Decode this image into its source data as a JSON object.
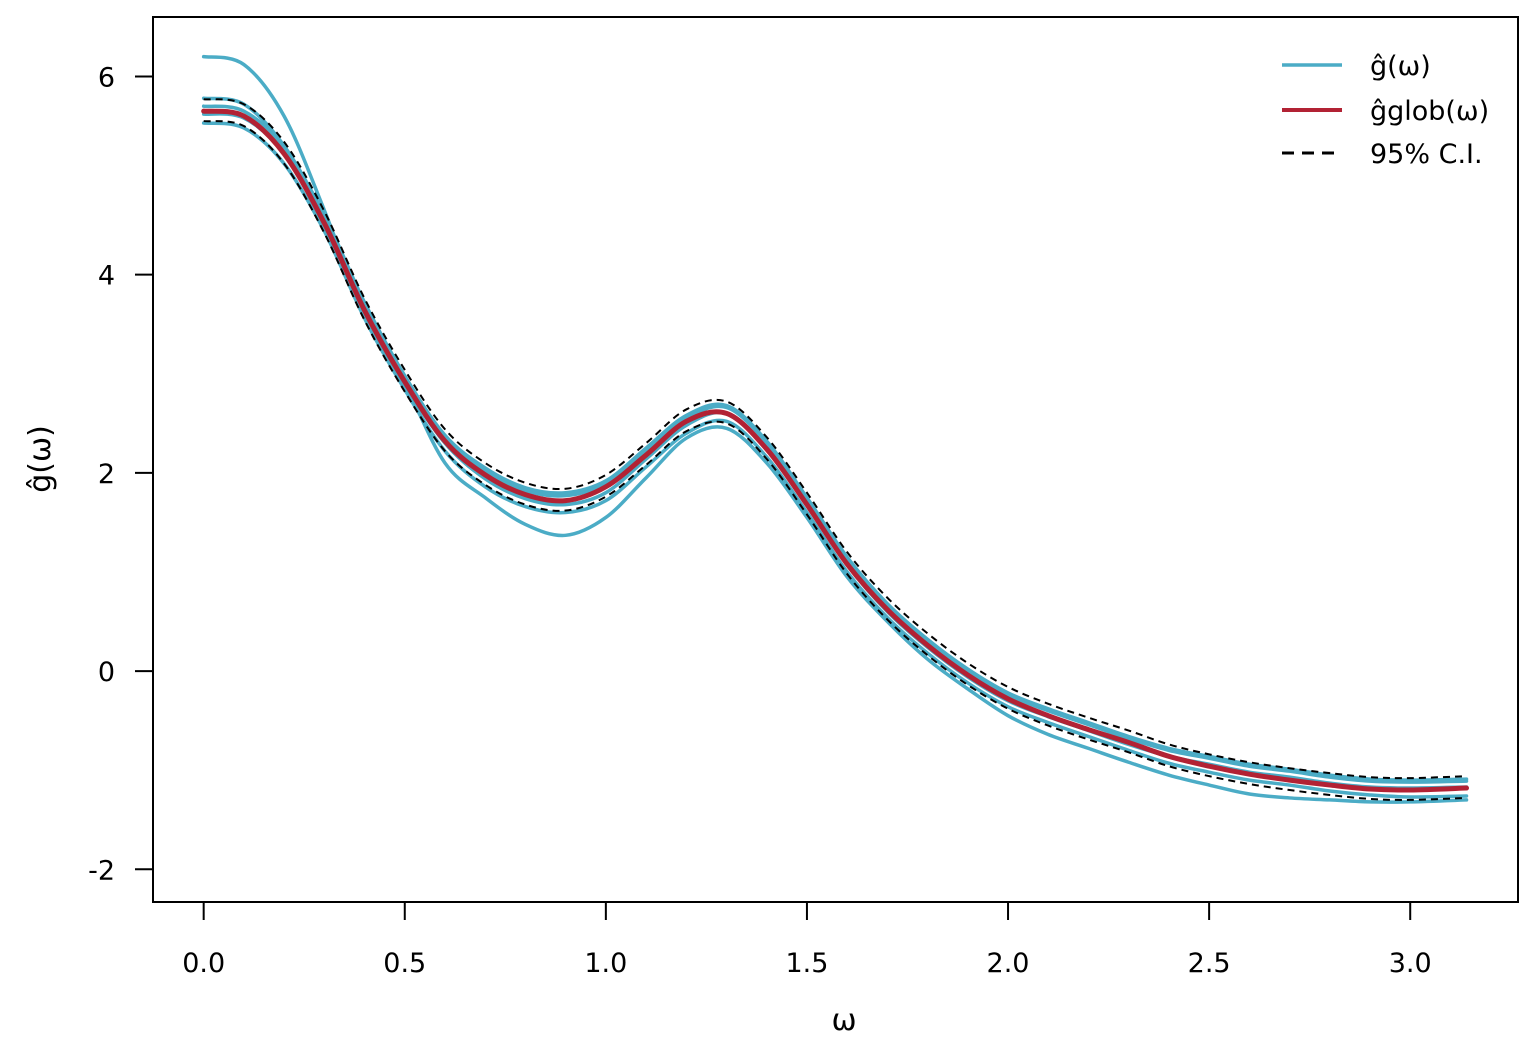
{
  "chart_data": {
    "type": "line",
    "title": "",
    "xlabel": "ω",
    "ylabel": "ĝ(ω)",
    "xlim": [
      -0.126,
      3.268
    ],
    "ylim": [
      -2.33,
      6.6
    ],
    "xticks": [
      0.0,
      0.5,
      1.0,
      1.5,
      2.0,
      2.5,
      3.0
    ],
    "xtick_labels": [
      "0.0",
      "0.5",
      "1.0",
      "1.5",
      "2.0",
      "2.5",
      "3.0"
    ],
    "yticks": [
      -2,
      0,
      2,
      4,
      6
    ],
    "ytick_labels": [
      "-2",
      "0",
      "2",
      "4",
      "6"
    ],
    "grid": false,
    "legend_position": "top-right",
    "x": [
      0.0,
      0.1,
      0.2,
      0.3,
      0.4,
      0.5,
      0.6,
      0.7,
      0.8,
      0.9,
      1.0,
      1.1,
      1.2,
      1.3,
      1.4,
      1.5,
      1.6,
      1.7,
      1.8,
      1.9,
      2.0,
      2.1,
      2.2,
      2.3,
      2.4,
      2.5,
      2.6,
      2.7,
      2.8,
      2.9,
      3.0,
      3.14
    ],
    "series": [
      {
        "name": "ĝ(ω)",
        "role": "individual",
        "color": "#4bacc6",
        "style": "solid",
        "values": [
          6.2,
          6.12,
          5.6,
          4.65,
          3.6,
          2.9,
          2.1,
          1.75,
          1.48,
          1.37,
          1.55,
          1.95,
          2.35,
          2.45,
          2.1,
          1.55,
          0.95,
          0.5,
          0.12,
          -0.18,
          -0.45,
          -0.64,
          -0.78,
          -0.92,
          -1.05,
          -1.15,
          -1.24,
          -1.28,
          -1.3,
          -1.32,
          -1.32,
          -1.3
        ]
      },
      {
        "role": "individual",
        "color": "#4bacc6",
        "style": "solid",
        "values": [
          5.78,
          5.72,
          5.3,
          4.6,
          3.72,
          2.98,
          2.38,
          2.05,
          1.85,
          1.8,
          1.92,
          2.25,
          2.58,
          2.68,
          2.32,
          1.75,
          1.15,
          0.68,
          0.32,
          0.02,
          -0.22,
          -0.38,
          -0.52,
          -0.66,
          -0.78,
          -0.86,
          -0.94,
          -0.99,
          -1.05,
          -1.09,
          -1.1,
          -1.09
        ]
      },
      {
        "role": "individual",
        "color": "#4bacc6",
        "style": "solid",
        "values": [
          5.7,
          5.65,
          5.28,
          4.58,
          3.7,
          2.96,
          2.36,
          2.02,
          1.82,
          1.77,
          1.89,
          2.22,
          2.55,
          2.66,
          2.3,
          1.73,
          1.13,
          0.66,
          0.3,
          0.0,
          -0.24,
          -0.4,
          -0.54,
          -0.68,
          -0.8,
          -0.88,
          -0.96,
          -1.01,
          -1.07,
          -1.11,
          -1.12,
          -1.11
        ]
      },
      {
        "role": "individual",
        "color": "#4bacc6",
        "style": "solid",
        "values": [
          5.62,
          5.58,
          5.22,
          4.52,
          3.64,
          2.9,
          2.3,
          1.94,
          1.74,
          1.68,
          1.8,
          2.14,
          2.48,
          2.6,
          2.24,
          1.67,
          1.07,
          0.6,
          0.24,
          -0.06,
          -0.3,
          -0.46,
          -0.6,
          -0.74,
          -0.86,
          -0.94,
          -1.02,
          -1.07,
          -1.13,
          -1.17,
          -1.18,
          -1.17
        ]
      },
      {
        "role": "individual",
        "color": "#4bacc6",
        "style": "solid",
        "values": [
          5.53,
          5.48,
          5.12,
          4.44,
          3.56,
          2.84,
          2.22,
          1.86,
          1.66,
          1.6,
          1.72,
          2.06,
          2.4,
          2.52,
          2.16,
          1.6,
          1.0,
          0.54,
          0.18,
          -0.12,
          -0.36,
          -0.52,
          -0.66,
          -0.8,
          -0.93,
          -1.02,
          -1.1,
          -1.15,
          -1.21,
          -1.25,
          -1.27,
          -1.26
        ]
      },
      {
        "name": "ĝ^glob(ω)",
        "role": "global",
        "color": "#b22234",
        "style": "solid",
        "values": [
          5.65,
          5.6,
          5.22,
          4.52,
          3.64,
          2.92,
          2.32,
          1.98,
          1.78,
          1.72,
          1.86,
          2.18,
          2.52,
          2.6,
          2.24,
          1.68,
          1.08,
          0.62,
          0.26,
          -0.04,
          -0.28,
          -0.45,
          -0.59,
          -0.72,
          -0.86,
          -0.96,
          -1.04,
          -1.1,
          -1.15,
          -1.19,
          -1.2,
          -1.18
        ]
      },
      {
        "name": "95% C.I.",
        "role": "ci",
        "color": "#000000",
        "style": "dashed",
        "values": [
          5.77,
          5.72,
          5.34,
          4.64,
          3.76,
          3.04,
          2.44,
          2.1,
          1.9,
          1.84,
          1.98,
          2.3,
          2.64,
          2.72,
          2.36,
          1.8,
          1.2,
          0.74,
          0.38,
          0.08,
          -0.16,
          -0.33,
          -0.47,
          -0.6,
          -0.74,
          -0.84,
          -0.92,
          -0.98,
          -1.03,
          -1.07,
          -1.08,
          -1.06
        ]
      },
      {
        "role": "ci",
        "color": "#000000",
        "style": "dashed",
        "values": [
          5.55,
          5.5,
          5.12,
          4.42,
          3.54,
          2.82,
          2.22,
          1.88,
          1.68,
          1.62,
          1.76,
          2.08,
          2.42,
          2.5,
          2.14,
          1.58,
          0.98,
          0.52,
          0.16,
          -0.14,
          -0.38,
          -0.55,
          -0.69,
          -0.82,
          -0.96,
          -1.06,
          -1.14,
          -1.2,
          -1.25,
          -1.29,
          -1.3,
          -1.28
        ]
      }
    ]
  },
  "legend": {
    "items": [
      {
        "label": "ĝ(ω)",
        "color": "#4bacc6",
        "style": "solid"
      },
      {
        "label": "ĝglob(ω)",
        "color": "#b22234",
        "style": "solid"
      },
      {
        "label": "95% C.I.",
        "color": "#000000",
        "style": "dashed"
      }
    ]
  }
}
